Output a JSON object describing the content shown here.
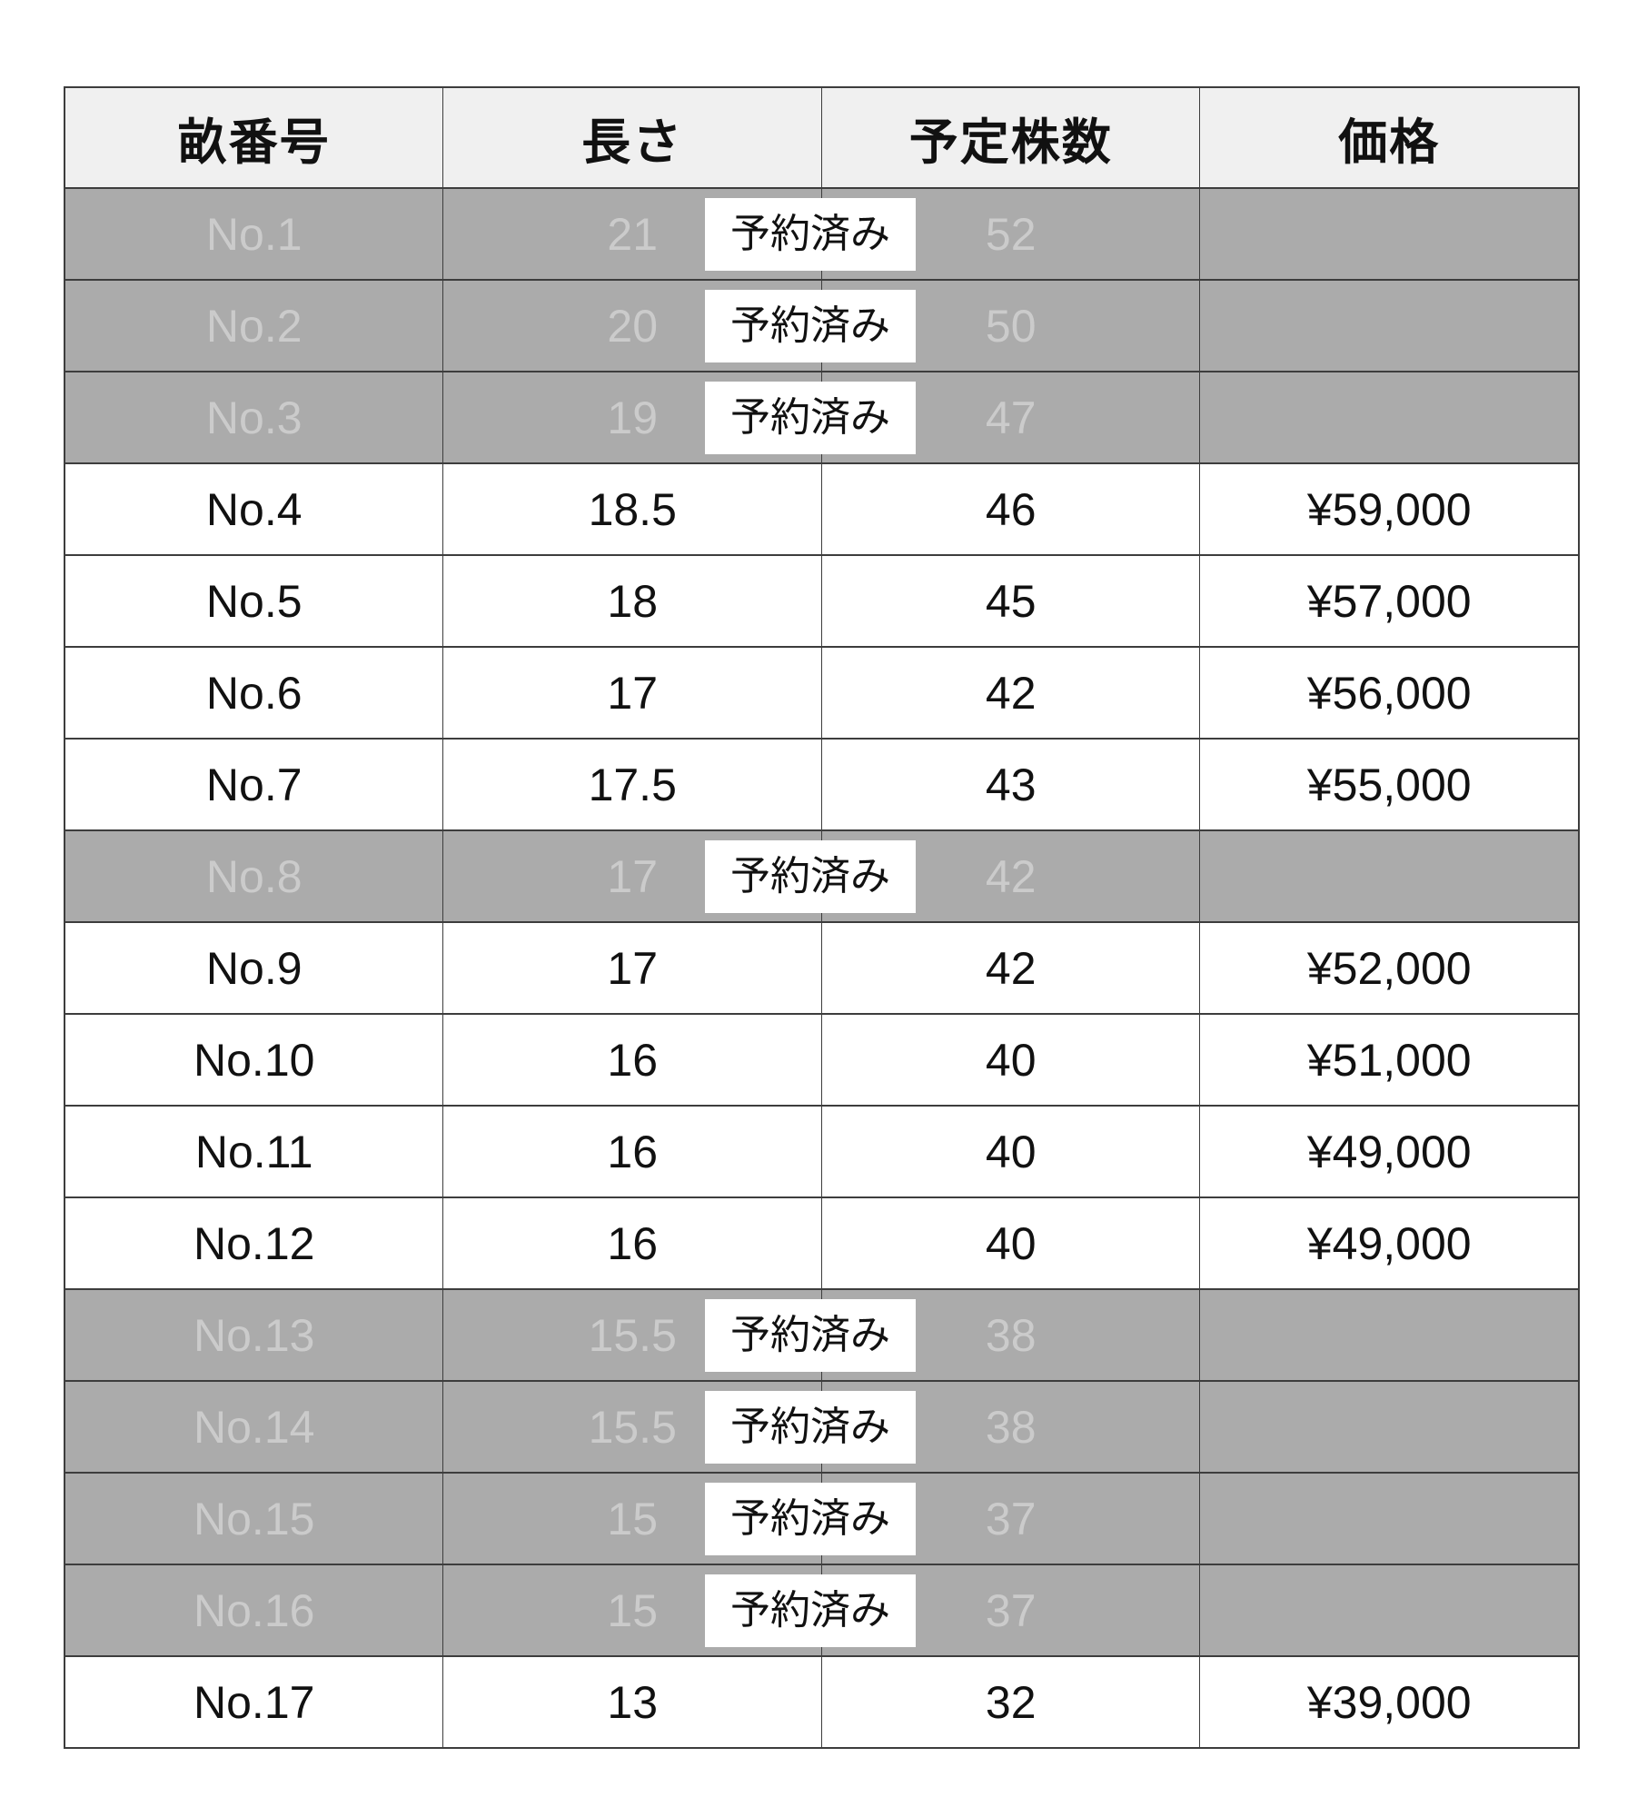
{
  "colors": {
    "page_bg": "#ffffff",
    "header_bg": "#f0f0f0",
    "row_bg": "#ffffff",
    "reserved_bg": "#ababab",
    "reserved_text": "#cbcbcb",
    "badge_bg": "#ffffff",
    "badge_text": "#111111",
    "text": "#111111",
    "border": "#3d3d3d"
  },
  "table": {
    "columns": [
      "畝番号",
      "長さ",
      "予定株数",
      "価格"
    ],
    "reserved_label": "予約済み",
    "rows": [
      {
        "no": "No.1",
        "length": "21",
        "stocks": "52",
        "price": "",
        "reserved": true
      },
      {
        "no": "No.2",
        "length": "20",
        "stocks": "50",
        "price": "",
        "reserved": true
      },
      {
        "no": "No.3",
        "length": "19",
        "stocks": "47",
        "price": "",
        "reserved": true
      },
      {
        "no": "No.4",
        "length": "18.5",
        "stocks": "46",
        "price": "¥59,000",
        "reserved": false
      },
      {
        "no": "No.5",
        "length": "18",
        "stocks": "45",
        "price": "¥57,000",
        "reserved": false
      },
      {
        "no": "No.6",
        "length": "17",
        "stocks": "42",
        "price": "¥56,000",
        "reserved": false
      },
      {
        "no": "No.7",
        "length": "17.5",
        "stocks": "43",
        "price": "¥55,000",
        "reserved": false
      },
      {
        "no": "No.8",
        "length": "17",
        "stocks": "42",
        "price": "",
        "reserved": true
      },
      {
        "no": "No.9",
        "length": "17",
        "stocks": "42",
        "price": "¥52,000",
        "reserved": false
      },
      {
        "no": "No.10",
        "length": "16",
        "stocks": "40",
        "price": "¥51,000",
        "reserved": false
      },
      {
        "no": "No.11",
        "length": "16",
        "stocks": "40",
        "price": "¥49,000",
        "reserved": false
      },
      {
        "no": "No.12",
        "length": "16",
        "stocks": "40",
        "price": "¥49,000",
        "reserved": false
      },
      {
        "no": "No.13",
        "length": "15.5",
        "stocks": "38",
        "price": "",
        "reserved": true
      },
      {
        "no": "No.14",
        "length": "15.5",
        "stocks": "38",
        "price": "",
        "reserved": true
      },
      {
        "no": "No.15",
        "length": "15",
        "stocks": "37",
        "price": "",
        "reserved": true
      },
      {
        "no": "No.16",
        "length": "15",
        "stocks": "37",
        "price": "",
        "reserved": true
      },
      {
        "no": "No.17",
        "length": "13",
        "stocks": "32",
        "price": "¥39,000",
        "reserved": false
      }
    ]
  }
}
